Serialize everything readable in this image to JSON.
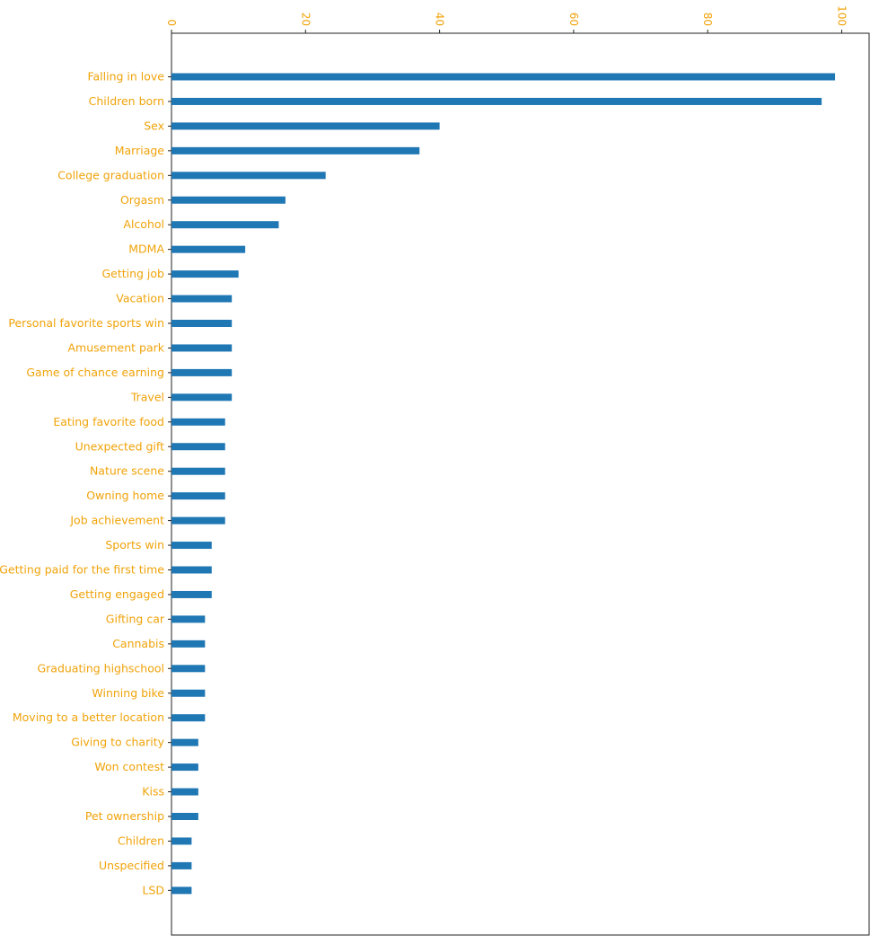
{
  "chart_data": {
    "type": "bar",
    "orientation": "horizontal",
    "categories": [
      "Falling in love",
      "Children born",
      "Sex",
      "Marriage",
      "College graduation",
      "Orgasm",
      "Alcohol",
      "MDMA",
      "Getting job",
      "Vacation",
      "Personal favorite sports win",
      "Amusement park",
      "Game of chance earning",
      "Travel",
      "Eating favorite food",
      "Unexpected gift",
      "Nature scene",
      "Owning home",
      "Job achievement",
      "Sports win",
      "Getting paid for the first time",
      "Getting engaged",
      "Gifting car",
      "Cannabis",
      "Graduating highschool",
      "Winning bike",
      "Moving to a better location",
      "Giving to charity",
      "Won contest",
      "Kiss",
      "Pet ownership",
      "Children",
      "Unspecified",
      "LSD"
    ],
    "values": [
      99,
      97,
      40,
      37,
      23,
      17,
      16,
      11,
      10,
      9,
      9,
      9,
      9,
      9,
      8,
      8,
      8,
      8,
      8,
      6,
      6,
      6,
      5,
      5,
      5,
      5,
      5,
      4,
      4,
      4,
      4,
      3,
      3,
      3
    ],
    "xticks": [
      0,
      20,
      40,
      60,
      80,
      100
    ],
    "xlim": [
      0,
      104
    ],
    "x_axis_position": "top",
    "tick_label_rotation": 90,
    "grid": false,
    "title": "",
    "xlabel": "",
    "ylabel": "",
    "colors": {
      "bar": "#1f77b4",
      "text": "#f0a30a",
      "axis": "#222222"
    }
  }
}
